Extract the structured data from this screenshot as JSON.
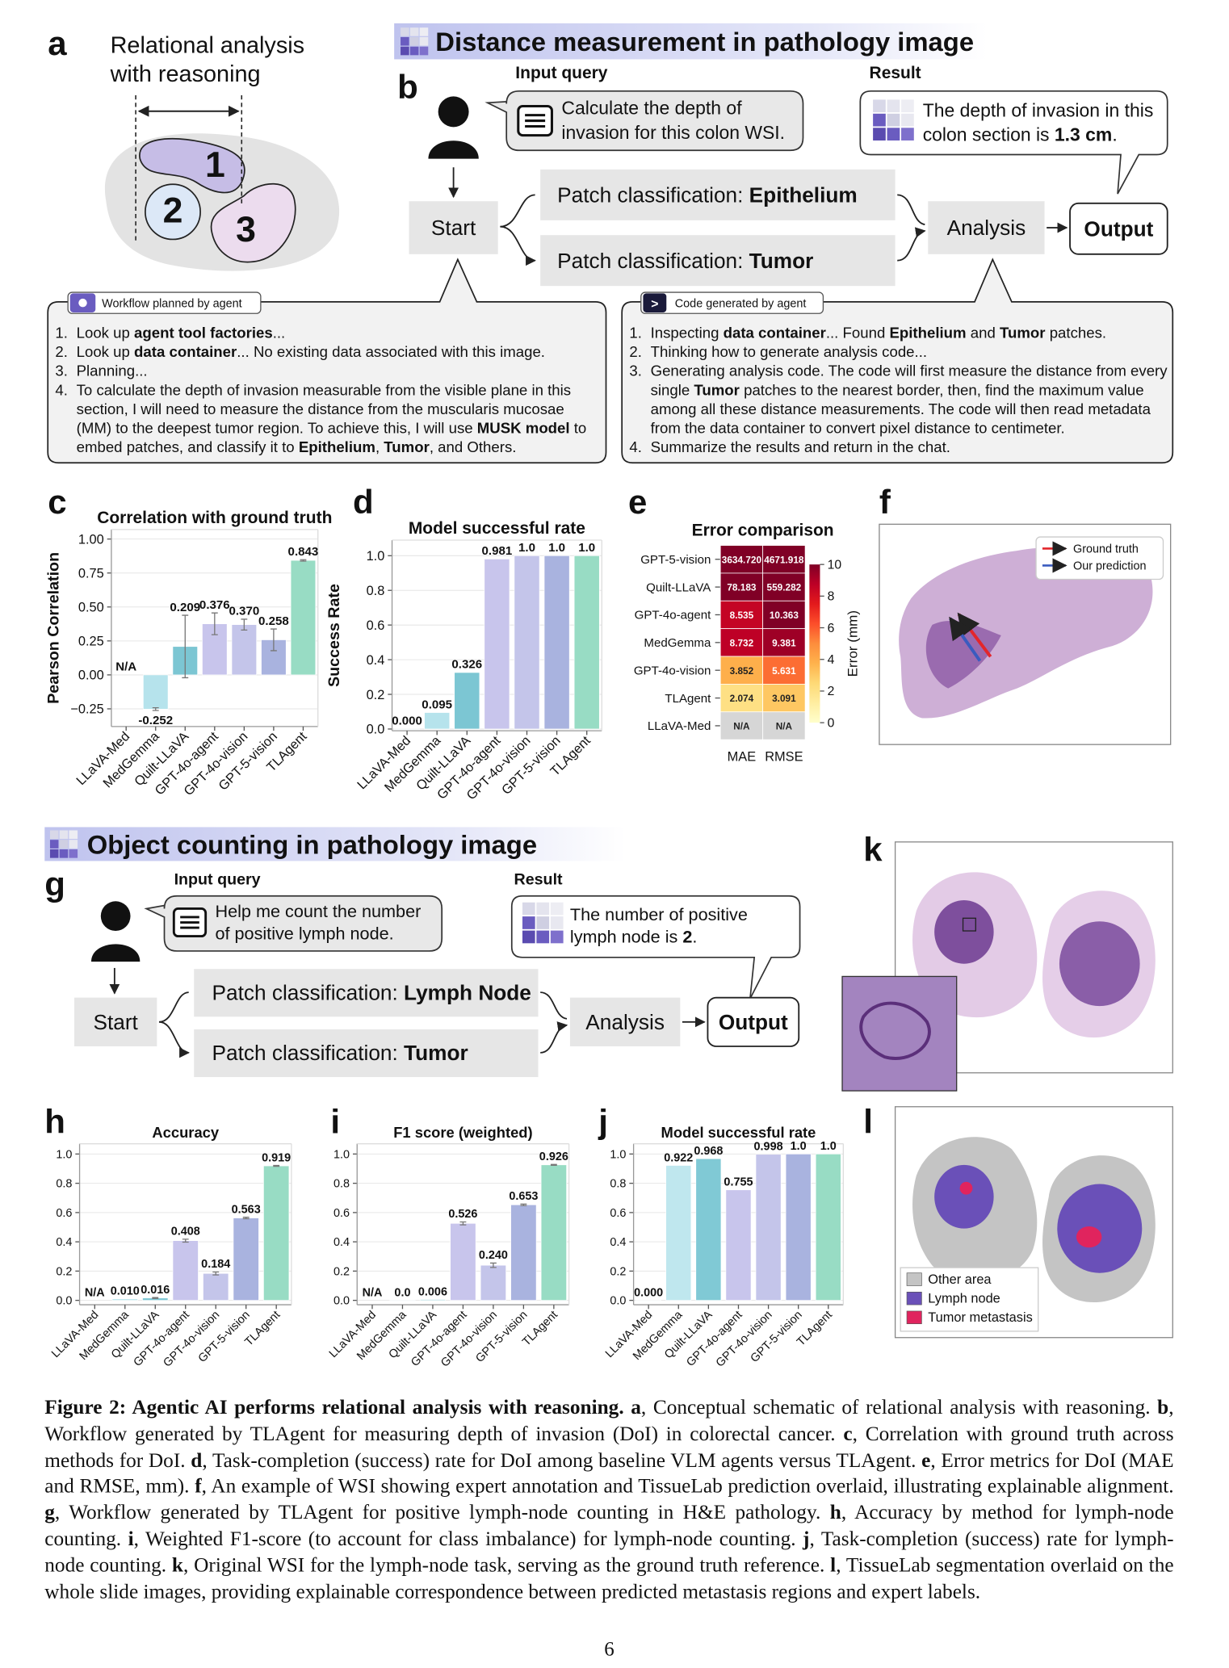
{
  "panel_a": {
    "label": "a",
    "title_lines": [
      "Relational analysis",
      "with reasoning"
    ],
    "regions": [
      "1",
      "2",
      "3"
    ]
  },
  "panel_b": {
    "label": "b",
    "header": "Distance measurement in pathology image",
    "input_title": "Input query",
    "result_title": "Result",
    "query_lines": [
      [
        "Calculate the depth of"
      ],
      [
        "invasion for this colon WSI."
      ]
    ],
    "result_lines": [
      [
        "The depth of invasion in this"
      ],
      [
        "colon section is ",
        "1.3 cm",
        "."
      ]
    ],
    "start": "Start",
    "branches": [
      [
        "Patch classification: ",
        "Epithelium"
      ],
      [
        "Patch classification: ",
        "Tumor"
      ]
    ],
    "analysis": "Analysis",
    "output": "Output",
    "workflow": {
      "title": "Workflow planned by agent",
      "steps": [
        {
          "n": "1.",
          "runs": [
            "Look up ",
            "agent tool factories",
            "..."
          ]
        },
        {
          "n": "2.",
          "runs": [
            "Look up ",
            "data container",
            "... No existing data associated with this image."
          ]
        },
        {
          "n": "3.",
          "runs": [
            "Planning..."
          ]
        },
        {
          "n": "4.",
          "runs": [
            "To calculate the depth of invasion measurable from the visible plane in this section, I will need to measure the distance from the muscularis mucosae (MM) to the deepest tumor region. To achieve this, I will use ",
            "MUSK model",
            " to embed patches, and classify it to ",
            "Epithelium",
            ", ",
            "Tumor",
            ", and Others."
          ]
        }
      ]
    },
    "code": {
      "icon": ">",
      "title": "Code generated by agent",
      "steps": [
        {
          "n": "1.",
          "runs": [
            "Inspecting ",
            "data container",
            "... Found ",
            "Epithelium",
            " and ",
            "Tumor",
            " patches."
          ]
        },
        {
          "n": "2.",
          "runs": [
            "Thinking how to generate analysis code..."
          ]
        },
        {
          "n": "3.",
          "runs": [
            "Generating analysis code. The code will first measure the distance from every single ",
            "Tumor",
            " patches to the nearest border, then, find the maximum value among all these distance measurements. The code will then read metadata from the data container to convert pixel distance to centimeter."
          ]
        },
        {
          "n": "4.",
          "runs": [
            "Summarize the results and return in the chat."
          ]
        }
      ]
    }
  },
  "panel_f": {
    "label": "f",
    "legend": [
      {
        "name": "Ground truth",
        "color": "#e3262b"
      },
      {
        "name": "Our prediction",
        "color": "#3a5bbf"
      }
    ]
  },
  "panel_g": {
    "label": "g",
    "header": "Object counting in pathology image",
    "input_title": "Input query",
    "result_title": "Result",
    "query_lines": [
      [
        "Help me count the number"
      ],
      [
        "of positive lymph node."
      ]
    ],
    "result_lines": [
      [
        "The number of positive"
      ],
      [
        "lymph node is ",
        "2",
        "."
      ]
    ],
    "start": "Start",
    "branches": [
      [
        "Patch classification: ",
        "Lymph Node"
      ],
      [
        "Patch classification: ",
        "Tumor"
      ]
    ],
    "analysis": "Analysis",
    "output": "Output"
  },
  "panel_k": {
    "label": "k"
  },
  "panel_l": {
    "label": "l",
    "legend": [
      {
        "name": "Other area",
        "color": "#c4c4c4"
      },
      {
        "name": "Lymph node",
        "color": "#6a50b8"
      },
      {
        "name": "Tumor metastasis",
        "color": "#e0245e"
      }
    ]
  },
  "chart_data": [
    {
      "type": "bar",
      "label": "c",
      "title": "Correlation with ground truth",
      "y_label": "Pearson Correlation",
      "categories": [
        "LLaVA-Med",
        "MedGemma",
        "Quilt-LLaVA",
        "GPT-4o-agent",
        "GPT-4o-vision",
        "GPT-5-vision",
        "TLAgent"
      ],
      "values": [
        null,
        -0.252,
        0.209,
        0.376,
        0.37,
        0.258,
        0.843
      ],
      "value_labels": [
        "N/A",
        "-0.252",
        "0.209",
        "0.376",
        "0.370",
        "0.258",
        "0.843"
      ],
      "errors": [
        null,
        0.01,
        0.23,
        0.08,
        0.04,
        0.08,
        0.005
      ],
      "colors": [
        "#cdeef3",
        "#b6e3ec",
        "#7cc6d3",
        "#c8c5ec",
        "#c4c5ea",
        "#a9b3df",
        "#98dcc4"
      ],
      "ylim": [
        -0.38,
        1.07
      ],
      "yticks": [
        {
          "value": 1,
          "label": "1.00"
        },
        0.75,
        {
          "value": 0.5,
          "label": "0.50"
        },
        0.25,
        {
          "value": 0,
          "label": "0.00"
        },
        {
          "value": -0.25,
          "label": "−0.25"
        }
      ],
      "grid": true
    },
    {
      "type": "bar",
      "label": "d",
      "title": "Model successful rate",
      "y_label": "Success Rate",
      "categories": [
        "LLaVA-Med",
        "MedGemma",
        "Quilt-LLaVA",
        "GPT-4o-agent",
        "GPT-4o-vision",
        "GPT-5-vision",
        "TLAgent"
      ],
      "values": [
        0.0,
        0.095,
        0.326,
        0.981,
        1.0,
        1.0,
        1.0
      ],
      "value_labels": [
        "0.000",
        "0.095",
        "0.326",
        "0.981",
        "1.0",
        "1.0",
        "1.0"
      ],
      "colors": [
        "#cdeef3",
        "#b6e3ec",
        "#7cc6d3",
        "#c8c5ec",
        "#c4c5ea",
        "#a9b3df",
        "#98dcc4"
      ],
      "ylim": [
        -0.01,
        1.09
      ],
      "yticks": [
        {
          "value": 0,
          "label": "0.0"
        },
        0.2,
        0.4,
        0.6,
        0.8,
        {
          "value": 1,
          "label": "1.0"
        }
      ],
      "grid": true
    },
    {
      "type": "heatmap",
      "label": "e",
      "title": "Error comparison",
      "rows": [
        "GPT-5-vision",
        "Quilt-LLaVA",
        "GPT-4o-agent",
        "MedGemma",
        "GPT-4o-vision",
        "TLAgent",
        "LLaVA-Med"
      ],
      "columns": [
        "MAE",
        "RMSE"
      ],
      "values": [
        [
          3634.72,
          4671.918
        ],
        [
          78.183,
          559.282
        ],
        [
          8.535,
          10.363
        ],
        [
          8.732,
          9.381
        ],
        [
          3.852,
          5.631
        ],
        [
          2.074,
          3.091
        ],
        [
          null,
          null
        ]
      ],
      "value_labels": [
        [
          "3634.720",
          "4671.918"
        ],
        [
          "78.183",
          "559.282"
        ],
        [
          "8.535",
          "10.363"
        ],
        [
          "8.732",
          "9.381"
        ],
        [
          "3.852",
          "5.631"
        ],
        [
          "2.074",
          "3.091"
        ],
        [
          "N/A",
          "N/A"
        ]
      ],
      "colorbar_label": "Error (mm)",
      "clim": [
        0,
        10
      ],
      "cticks": [
        0,
        2,
        4,
        6,
        8,
        10
      ],
      "colormap": [
        "#ffffcc",
        "#ffeda0",
        "#fed976",
        "#feb24c",
        "#fd8d3c",
        "#fc4e2a",
        "#e31a1c",
        "#bd0026",
        "#800026"
      ],
      "na_color": "#d6d6d6"
    },
    {
      "type": "bar",
      "label": "h",
      "title": "Accuracy",
      "categories": [
        "LLaVA-Med",
        "MedGemma",
        "Quilt-LLaVA",
        "GPT-4o-agent",
        "GPT-4o-vision",
        "GPT-5-vision",
        "TLAgent"
      ],
      "values": [
        null,
        0.01,
        0.016,
        0.408,
        0.184,
        0.563,
        0.919
      ],
      "value_labels": [
        "N/A",
        "0.010",
        "0.016",
        "0.408",
        "0.184",
        "0.563",
        "0.919"
      ],
      "errors": [
        null,
        null,
        0.003,
        0.01,
        0.01,
        0.005,
        0.003
      ],
      "colors": [
        "#cdeef3",
        "#b6e3ec",
        "#7cc6d3",
        "#c8c5ec",
        "#c4c5ea",
        "#a9b3df",
        "#98dcc4"
      ],
      "ylim": [
        -0.03,
        1.07
      ],
      "yticks": [
        {
          "value": 0,
          "label": "0.0"
        },
        0.2,
        0.4,
        0.6,
        0.8,
        {
          "value": 1,
          "label": "1.0"
        }
      ],
      "grid": true
    },
    {
      "type": "bar",
      "label": "i",
      "title": "F1 score (weighted)",
      "categories": [
        "LLaVA-Med",
        "MedGemma",
        "Quilt-LLaVA",
        "GPT-4o-agent",
        "GPT-4o-vision",
        "GPT-5-vision",
        "TLAgent"
      ],
      "values": [
        null,
        0.0,
        0.006,
        0.526,
        0.24,
        0.653,
        0.926
      ],
      "value_labels": [
        "N/A",
        "0.0",
        "0.006",
        "0.526",
        "0.240",
        "0.653",
        "0.926"
      ],
      "errors": [
        null,
        null,
        null,
        0.01,
        0.015,
        0.005,
        0.003
      ],
      "colors": [
        "#cdeef3",
        "#b6e3ec",
        "#7cc6d3",
        "#c8c5ec",
        "#c4c5ea",
        "#a9b3df",
        "#98dcc4"
      ],
      "ylim": [
        -0.03,
        1.07
      ],
      "yticks": [
        {
          "value": 0,
          "label": "0.0"
        },
        0.2,
        0.4,
        0.6,
        0.8,
        {
          "value": 1,
          "label": "1.0"
        }
      ],
      "grid": true
    },
    {
      "type": "bar",
      "label": "j",
      "title": "Model successful rate",
      "categories": [
        "LLaVA-Med",
        "MedGemma",
        "Quilt-LLaVA",
        "GPT-4o-agent",
        "GPT-4o-vision",
        "GPT-5-vision",
        "TLAgent"
      ],
      "values": [
        0.0,
        0.922,
        0.968,
        0.755,
        0.998,
        1.0,
        1.0
      ],
      "value_labels": [
        "0.000",
        "0.922",
        "0.968",
        "0.755",
        "0.998",
        "1.0",
        "1.0"
      ],
      "colors": [
        "#cdeef3",
        "#bfe7ee",
        "#80c9d5",
        "#c8c5ec",
        "#c4c5ea",
        "#a9b3df",
        "#98dcc4"
      ],
      "ylim": [
        -0.03,
        1.07
      ],
      "yticks": [
        {
          "value": 0,
          "label": "0.0"
        },
        0.2,
        0.4,
        0.6,
        0.8,
        {
          "value": 1,
          "label": "1.0"
        }
      ],
      "grid": true
    }
  ],
  "caption": {
    "title": "Figure 2: Agentic AI performs relational analysis with reasoning.",
    "items": [
      {
        "label": "a",
        "text": ", Conceptual schematic of relational analysis with reasoning."
      },
      {
        "label": "b",
        "text": ", Workflow generated by TLAgent for measuring depth of invasion (DoI) in colorectal cancer."
      },
      {
        "label": "c",
        "text": ", Correlation with ground truth across methods for DoI."
      },
      {
        "label": "d",
        "text": ", Task-completion (success) rate for DoI among baseline VLM agents versus TLAgent."
      },
      {
        "label": "e",
        "text": ", Error metrics for DoI (MAE and RMSE, mm)."
      },
      {
        "label": "f",
        "text": ", An example of WSI showing expert annotation and TissueLab prediction overlaid, illustrating explainable alignment."
      },
      {
        "label": "g",
        "text": ", Workflow generated by TLAgent for positive lymph-node counting in H&E pathology."
      },
      {
        "label": "h",
        "text": ", Accuracy by method for lymph-node counting."
      },
      {
        "label": "i",
        "text": ", Weighted F1-score (to account for class imbalance) for lymph-node counting."
      },
      {
        "label": "j",
        "text": ", Task-completion (success) rate for lymph-node counting."
      },
      {
        "label": "k",
        "text": ", Original WSI for the lymph-node task, serving as the ground truth reference."
      },
      {
        "label": "l",
        "text": ", TissueLab segmentation overlaid on the whole slide images, providing explainable correspondence between predicted metastasis regions and expert labels."
      }
    ]
  },
  "page_number": "6"
}
